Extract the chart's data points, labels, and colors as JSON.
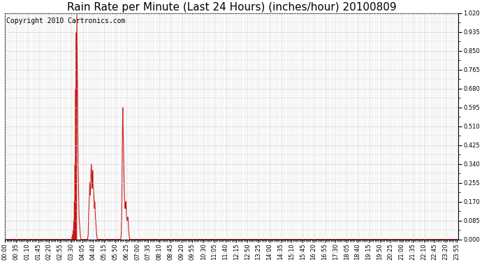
{
  "title": "Rain Rate per Minute (Last 24 Hours) (inches/hour) 20100809",
  "copyright": "Copyright 2010 Cartronics.com",
  "background_color": "#ffffff",
  "plot_bg_color": "#ffffff",
  "line_color": "#cc0000",
  "grid_color": "#c8c8c8",
  "ylim": [
    0.0,
    1.02
  ],
  "yticks": [
    0.0,
    0.085,
    0.17,
    0.255,
    0.34,
    0.425,
    0.51,
    0.595,
    0.68,
    0.765,
    0.85,
    0.935,
    1.02
  ],
  "minutes_total": 1440,
  "title_fontsize": 11,
  "copyright_fontsize": 7,
  "tick_fontsize": 6,
  "xtick_every": 35,
  "minor_xtick_every": 5
}
